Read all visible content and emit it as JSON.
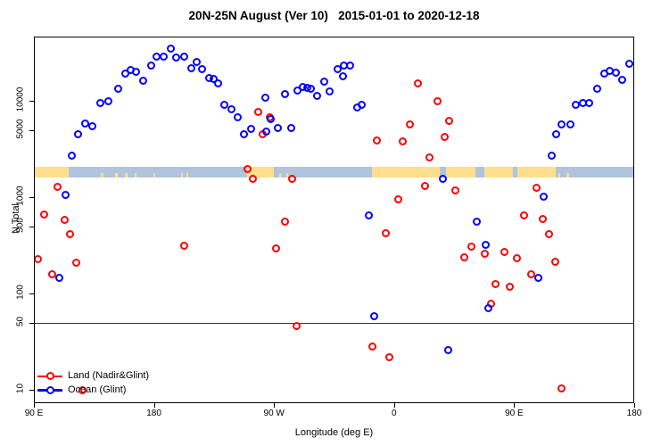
{
  "title": "20N-25N August (Ver 10)   2015-01-01 to 2020-12-18",
  "axes": {
    "y_label": "N Total",
    "x_label": "Longitude (deg E)",
    "y_scale": "log10",
    "y_ticks": [
      {
        "value": 10,
        "label": "10"
      },
      {
        "value": 50,
        "label": "50"
      },
      {
        "value": 100,
        "label": "100"
      },
      {
        "value": 500,
        "label": "500"
      },
      {
        "value": 1000,
        "label": "1000"
      },
      {
        "value": 5000,
        "label": "5000"
      },
      {
        "value": 10000,
        "label": "10000"
      }
    ],
    "x_ticks": [
      {
        "lon": 90,
        "label": "90 E"
      },
      {
        "lon": 180,
        "label": "180"
      },
      {
        "lon": 270,
        "label": "90 W"
      },
      {
        "lon": 360,
        "label": "0"
      },
      {
        "lon": 450,
        "label": "90 E"
      },
      {
        "lon": 540,
        "label": "180"
      }
    ],
    "x_range_plot_deg": [
      90,
      540
    ],
    "reference_line_n": 50
  },
  "legend": {
    "items": [
      {
        "label": "Land (Nadir&Glint)",
        "color": "#ff0000"
      },
      {
        "label": "Ocean (Glint)",
        "color": "#0000ff"
      }
    ]
  },
  "map_band": {
    "ocean_color": "#b0c4de",
    "land_color": "#ffdf8c",
    "land_segments_deg": [
      [
        90,
        116
      ],
      [
        249.8,
        269.8
      ],
      [
        343.3,
        394
      ],
      [
        399,
        421
      ],
      [
        427.5,
        449
      ],
      [
        452.4,
        481
      ]
    ],
    "island_specks_deg": [
      [
        140,
        142
      ],
      [
        151,
        153
      ],
      [
        158.5,
        160
      ],
      [
        165.5,
        167
      ],
      [
        179.5,
        181
      ],
      [
        200.5,
        202
      ],
      [
        204.5,
        206
      ],
      [
        274,
        275.5
      ],
      [
        279,
        280.5
      ],
      [
        483,
        484.5
      ],
      [
        489.5,
        491
      ]
    ]
  },
  "chart_data": {
    "type": "scatter",
    "title": "20N-25N August (Ver 10)   2015-01-01 to 2020-12-18",
    "xlabel": "Longitude (deg E)",
    "ylabel": "N Total",
    "ylim": [
      8,
      46000
    ],
    "x_axis_note": "longitude plotted from 90E eastward wrapping to 180 (90..540 deg plot space)",
    "series": [
      {
        "name": "Land (Nadir&Glint)",
        "color": "#ff0000",
        "points": [
          [
            93.3,
            226
          ],
          [
            97.8,
            653
          ],
          [
            103.8,
            157
          ],
          [
            107.8,
            1280
          ],
          [
            113.4,
            575
          ],
          [
            117.2,
            414
          ],
          [
            121.9,
            207
          ],
          [
            126.3,
            10
          ],
          [
            202.5,
            310
          ],
          [
            250,
            1940
          ],
          [
            254.4,
            1560
          ],
          [
            258.4,
            7690
          ],
          [
            261.8,
            4540
          ],
          [
            266.7,
            6810
          ],
          [
            271.3,
            294
          ],
          [
            278,
            558
          ],
          [
            283.4,
            1540
          ],
          [
            286.9,
            46
          ],
          [
            343.8,
            28
          ],
          [
            346.9,
            3890
          ],
          [
            353.6,
            420
          ],
          [
            356.5,
            22
          ],
          [
            363.2,
            953
          ],
          [
            366.5,
            3810
          ],
          [
            372,
            5730
          ],
          [
            377.6,
            15000
          ],
          [
            383.2,
            1310
          ],
          [
            386.5,
            2610
          ],
          [
            392.7,
            9800
          ],
          [
            398.1,
            4180
          ],
          [
            401,
            6180
          ],
          [
            405.9,
            1180
          ],
          [
            412.6,
            235
          ],
          [
            417.7,
            305
          ],
          [
            427.7,
            259
          ],
          [
            432.7,
            79
          ],
          [
            436,
            125
          ],
          [
            442.9,
            268
          ],
          [
            446.7,
            117
          ],
          [
            451.8,
            230
          ],
          [
            457.1,
            645
          ],
          [
            462.9,
            157
          ],
          [
            466.8,
            1250
          ],
          [
            471.2,
            590
          ],
          [
            476.3,
            415
          ],
          [
            480.8,
            211
          ],
          [
            485.7,
            10.3
          ]
        ]
      },
      {
        "name": "Ocean (Glint)",
        "color": "#0000ff",
        "points": [
          [
            108.9,
            144
          ],
          [
            113.6,
            1060
          ],
          [
            118.3,
            2680
          ],
          [
            123,
            4540
          ],
          [
            128.3,
            5780
          ],
          [
            133.6,
            5500
          ],
          [
            139.5,
            9400
          ],
          [
            146.1,
            9790
          ],
          [
            153.5,
            13200
          ],
          [
            158.6,
            19100
          ],
          [
            162.8,
            20700
          ],
          [
            166.6,
            19800
          ],
          [
            172,
            16200
          ],
          [
            177.7,
            23400
          ],
          [
            182,
            28600
          ],
          [
            187.4,
            28600
          ],
          [
            192.7,
            34900
          ],
          [
            196.9,
            28300
          ],
          [
            202.7,
            28600
          ],
          [
            208.1,
            22000
          ],
          [
            212.1,
            25300
          ],
          [
            216.1,
            21200
          ],
          [
            221.4,
            17300
          ],
          [
            225,
            16800
          ],
          [
            228.1,
            15200
          ],
          [
            232.6,
            9120
          ],
          [
            238.4,
            8200
          ],
          [
            242.7,
            6810
          ],
          [
            247.3,
            4540
          ],
          [
            252.9,
            5130
          ],
          [
            263.3,
            10700
          ],
          [
            264.4,
            4810
          ],
          [
            267.3,
            6440
          ],
          [
            272.9,
            5260
          ],
          [
            278,
            11800
          ],
          [
            282.8,
            5260
          ],
          [
            287.4,
            12700
          ],
          [
            291.4,
            13900
          ],
          [
            295.2,
            13600
          ],
          [
            297.6,
            13200
          ],
          [
            302.5,
            11200
          ],
          [
            307.9,
            15800
          ],
          [
            311.9,
            12400
          ],
          [
            317.4,
            21200
          ],
          [
            321.9,
            18100
          ],
          [
            322.6,
            23400
          ],
          [
            327.1,
            23400
          ],
          [
            332.4,
            8600
          ],
          [
            336,
            9120
          ],
          [
            341.3,
            650
          ],
          [
            345.3,
            58
          ],
          [
            396.6,
            1550
          ],
          [
            400.6,
            26
          ],
          [
            422.2,
            558
          ],
          [
            428.9,
            323
          ],
          [
            430.7,
            70
          ],
          [
            467.9,
            145
          ],
          [
            471.9,
            1020
          ],
          [
            477.9,
            2680
          ],
          [
            481.7,
            4540
          ],
          [
            485.3,
            5700
          ],
          [
            492,
            5730
          ],
          [
            496.2,
            9120
          ],
          [
            501.3,
            9440
          ],
          [
            506,
            9580
          ],
          [
            512.5,
            13200
          ],
          [
            517.4,
            19100
          ],
          [
            521.4,
            20600
          ],
          [
            526.3,
            19700
          ],
          [
            531,
            16600
          ],
          [
            536.5,
            24000
          ]
        ]
      }
    ]
  }
}
